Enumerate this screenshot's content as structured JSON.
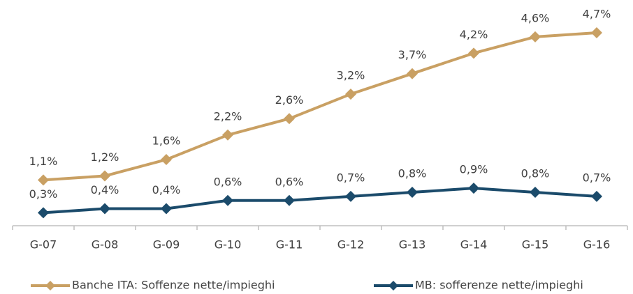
{
  "chart_data": {
    "type": "line",
    "categories": [
      "G-07",
      "G-08",
      "G-09",
      "G-10",
      "G-11",
      "G-12",
      "G-13",
      "G-14",
      "G-15",
      "G-16"
    ],
    "series": [
      {
        "name": "Banche ITA: Soffenze nette/impieghi",
        "color": "#c9a063",
        "values": [
          1.1,
          1.2,
          1.6,
          2.2,
          2.6,
          3.2,
          3.7,
          4.2,
          4.6,
          4.7
        ],
        "value_labels": [
          "1,1%",
          "1,2%",
          "1,6%",
          "2,2%",
          "2,6%",
          "3,2%",
          "3,7%",
          "4,2%",
          "4,6%",
          "4,7%"
        ]
      },
      {
        "name": "MB: sofferenze nette/impieghi",
        "color": "#1b4b6b",
        "values": [
          0.3,
          0.4,
          0.4,
          0.6,
          0.6,
          0.7,
          0.8,
          0.9,
          0.8,
          0.7
        ],
        "value_labels": [
          "0,3%",
          "0,4%",
          "0,4%",
          "0,6%",
          "0,6%",
          "0,7%",
          "0,8%",
          "0,9%",
          "0,8%",
          "0,7%"
        ]
      }
    ],
    "ylim": [
      0,
      5.5
    ],
    "legend": "bottom"
  }
}
